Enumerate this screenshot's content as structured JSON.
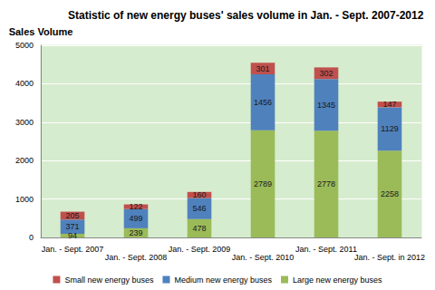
{
  "chart_data": {
    "type": "bar",
    "title": "Statistic of new energy buses' sales volume in Jan. - Sept. 2007-2012",
    "y_label": "Sales Volume",
    "categories": [
      "Jan. - Sept. 2007",
      "Jan. - Sept. 2008",
      "Jan. - Sept. 2009",
      "Jan. - Sept. 2010",
      "Jan. - Sept. 2011",
      "Jan. - Sept. in 2012"
    ],
    "series": [
      {
        "name": "Large new energy buses",
        "color": "#9bbb59",
        "values": [
          94,
          239,
          478,
          2789,
          2778,
          2258
        ]
      },
      {
        "name": "Medium new energy buses",
        "color": "#4f81bd",
        "values": [
          371,
          499,
          546,
          1456,
          1345,
          1129
        ]
      },
      {
        "name": "Small new energy buses",
        "color": "#c0504d",
        "values": [
          205,
          122,
          160,
          301,
          302,
          147
        ]
      }
    ],
    "stacked": true,
    "data_labels": true,
    "ylim": [
      0,
      5000
    ],
    "yticks": [
      0,
      1000,
      2000,
      3000,
      4000,
      5000
    ],
    "grid": true,
    "legend": "bottom"
  }
}
